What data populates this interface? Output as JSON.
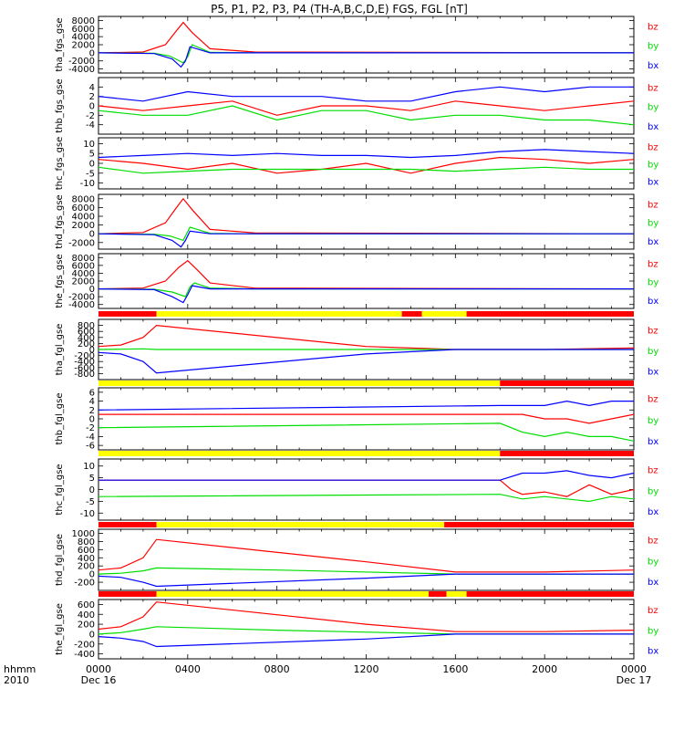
{
  "title": "P5, P1, P2, P3, P4 (TH-A,B,C,D,E) FGS, FGL [nT]",
  "x_axis": {
    "ticks": [
      "0000",
      "0400",
      "0800",
      "1200",
      "1600",
      "2000",
      "0000"
    ],
    "tick_values": [
      0,
      4,
      8,
      12,
      16,
      20,
      24
    ],
    "start_date": "Dec 16",
    "end_date": "Dec 17",
    "row1_label": "hhmm",
    "row2_label": "2010"
  },
  "colors": {
    "bx": "#0000ff",
    "by": "#00dd00",
    "bz": "#ff0000",
    "bar_red": "#ff0000",
    "bar_yellow": "#ffff00"
  },
  "chart_data": [
    {
      "type": "line",
      "ylabel": "tha_fgs_gse",
      "ylim": [
        -5000,
        9000
      ],
      "yticks": [
        8000,
        6000,
        4000,
        2000,
        0,
        -2000,
        -4000
      ],
      "xlim": [
        0,
        24
      ],
      "legend": [
        "bz",
        "by",
        "bx"
      ],
      "legend_placement": "right",
      "series": [
        {
          "name": "bz",
          "color": "#ff0000",
          "x": [
            0,
            2,
            3,
            3.5,
            3.8,
            4.2,
            5,
            7,
            24
          ],
          "y": [
            0,
            200,
            2000,
            5500,
            7500,
            5000,
            1000,
            200,
            0
          ]
        },
        {
          "name": "by",
          "color": "#00dd00",
          "x": [
            0,
            2.5,
            3.2,
            3.8,
            4,
            4.2,
            5,
            7,
            24
          ],
          "y": [
            0,
            -100,
            -800,
            -2500,
            -1000,
            2000,
            100,
            0,
            0
          ]
        },
        {
          "name": "bx",
          "color": "#0000ff",
          "x": [
            0,
            2.5,
            3.3,
            3.7,
            3.9,
            4.1,
            5,
            7,
            24
          ],
          "y": [
            0,
            -200,
            -1500,
            -3500,
            -2000,
            1500,
            0,
            0,
            0
          ]
        }
      ]
    },
    {
      "type": "line",
      "ylabel": "thb_fgs_gse",
      "ylim": [
        -6,
        6
      ],
      "yticks": [
        4,
        2,
        0,
        -2,
        -4
      ],
      "xlim": [
        0,
        24
      ],
      "legend": [
        "bz",
        "by",
        "bx"
      ],
      "legend_placement": "right",
      "series": [
        {
          "name": "bz",
          "color": "#ff0000",
          "x": [
            0,
            2,
            4,
            6,
            8,
            10,
            12,
            14,
            16,
            18,
            20,
            22,
            24
          ],
          "y": [
            0,
            -1,
            0,
            1,
            -2,
            0,
            0,
            -1,
            1,
            0,
            -1,
            0,
            1
          ]
        },
        {
          "name": "by",
          "color": "#00dd00",
          "x": [
            0,
            2,
            4,
            6,
            8,
            10,
            12,
            14,
            16,
            18,
            20,
            22,
            24
          ],
          "y": [
            -1,
            -2,
            -2,
            0,
            -3,
            -1,
            -1,
            -3,
            -2,
            -2,
            -3,
            -3,
            -4
          ]
        },
        {
          "name": "bx",
          "color": "#0000ff",
          "x": [
            0,
            2,
            4,
            6,
            8,
            10,
            12,
            14,
            16,
            18,
            20,
            22,
            24
          ],
          "y": [
            2,
            1,
            3,
            2,
            2,
            2,
            1,
            1,
            3,
            4,
            3,
            4,
            4
          ]
        }
      ]
    },
    {
      "type": "line",
      "ylabel": "thc_fgs_gse",
      "ylim": [
        -13,
        13
      ],
      "yticks": [
        10,
        5,
        0,
        -5,
        -10
      ],
      "xlim": [
        0,
        24
      ],
      "legend": [
        "bz",
        "by",
        "bx"
      ],
      "legend_placement": "right",
      "series": [
        {
          "name": "bz",
          "color": "#ff0000",
          "x": [
            0,
            2,
            4,
            6,
            8,
            10,
            12,
            14,
            16,
            18,
            20,
            22,
            24
          ],
          "y": [
            2,
            0,
            -3,
            0,
            -5,
            -3,
            0,
            -5,
            0,
            3,
            2,
            0,
            2
          ]
        },
        {
          "name": "by",
          "color": "#00dd00",
          "x": [
            0,
            2,
            4,
            6,
            8,
            10,
            12,
            14,
            16,
            18,
            20,
            22,
            24
          ],
          "y": [
            -2,
            -5,
            -4,
            -3,
            -3,
            -3,
            -3,
            -3,
            -4,
            -3,
            -2,
            -3,
            -3
          ]
        },
        {
          "name": "bx",
          "color": "#0000ff",
          "x": [
            0,
            2,
            4,
            6,
            8,
            10,
            12,
            14,
            16,
            18,
            20,
            22,
            24
          ],
          "y": [
            3,
            4,
            5,
            4,
            5,
            4,
            4,
            3,
            4,
            6,
            7,
            6,
            5
          ]
        }
      ]
    },
    {
      "type": "line",
      "ylabel": "thd_fgs_gse",
      "ylim": [
        -3500,
        9000
      ],
      "yticks": [
        8000,
        6000,
        4000,
        2000,
        0,
        -2000
      ],
      "xlim": [
        0,
        24
      ],
      "legend": [
        "bz",
        "by",
        "bx"
      ],
      "legend_placement": "right",
      "series": [
        {
          "name": "bz",
          "color": "#ff0000",
          "x": [
            0,
            2,
            3,
            3.5,
            3.8,
            4.2,
            5,
            7,
            24
          ],
          "y": [
            0,
            300,
            2500,
            6000,
            8000,
            5500,
            1000,
            200,
            0
          ]
        },
        {
          "name": "by",
          "color": "#00dd00",
          "x": [
            0,
            2.5,
            3.2,
            3.8,
            4.1,
            4.3,
            5,
            7,
            24
          ],
          "y": [
            0,
            -100,
            -500,
            -1500,
            1500,
            1200,
            100,
            0,
            0
          ]
        },
        {
          "name": "bx",
          "color": "#0000ff",
          "x": [
            0,
            2.5,
            3.3,
            3.7,
            3.9,
            4.1,
            5,
            7,
            24
          ],
          "y": [
            0,
            -200,
            -1500,
            -3000,
            -1500,
            600,
            0,
            0,
            0
          ]
        }
      ]
    },
    {
      "type": "line",
      "ylabel": "the_fgs_gse",
      "ylim": [
        -5000,
        9000
      ],
      "yticks": [
        8000,
        6000,
        4000,
        2000,
        0,
        -2000,
        -4000
      ],
      "xlim": [
        0,
        24
      ],
      "legend": [
        "bz",
        "by",
        "bx"
      ],
      "legend_placement": "right",
      "series": [
        {
          "name": "bz",
          "color": "#ff0000",
          "x": [
            0,
            2,
            3,
            3.6,
            4,
            4.4,
            5,
            7,
            24
          ],
          "y": [
            0,
            200,
            2000,
            5500,
            7200,
            5000,
            1500,
            200,
            0
          ]
        },
        {
          "name": "by",
          "color": "#00dd00",
          "x": [
            0,
            2.5,
            3.3,
            3.9,
            4.1,
            4.3,
            5,
            7,
            24
          ],
          "y": [
            0,
            -100,
            -800,
            -2000,
            500,
            1500,
            200,
            0,
            0
          ]
        },
        {
          "name": "bx",
          "color": "#0000ff",
          "x": [
            0,
            2.5,
            3.3,
            3.8,
            4,
            4.2,
            5,
            7,
            24
          ],
          "y": [
            0,
            -200,
            -2000,
            -3500,
            -1500,
            800,
            0,
            0,
            0
          ]
        }
      ]
    },
    {
      "type": "line",
      "ylabel": "tha_fgl_gse",
      "ylim": [
        -1000,
        1000
      ],
      "yticks": [
        800,
        600,
        400,
        200,
        0,
        -200,
        -400,
        -600,
        -800
      ],
      "xlim": [
        0,
        24
      ],
      "legend": [
        "bz",
        "by",
        "bx"
      ],
      "legend_placement": "right",
      "series": [
        {
          "name": "bz",
          "color": "#ff0000",
          "x": [
            0,
            1,
            2,
            2.6,
            12,
            16,
            20,
            24
          ],
          "y": [
            100,
            150,
            400,
            800,
            100,
            0,
            0,
            50
          ]
        },
        {
          "name": "by",
          "color": "#00dd00",
          "x": [
            0,
            1,
            2,
            2.6,
            8,
            16,
            24
          ],
          "y": [
            0,
            10,
            20,
            0,
            0,
            0,
            0
          ]
        },
        {
          "name": "bx",
          "color": "#0000ff",
          "x": [
            0,
            1,
            2,
            2.6,
            12,
            16,
            24
          ],
          "y": [
            -100,
            -150,
            -400,
            -780,
            -150,
            0,
            0
          ]
        }
      ]
    },
    {
      "type": "line",
      "ylabel": "thb_fgl_gse",
      "ylim": [
        -7,
        7
      ],
      "yticks": [
        6,
        4,
        2,
        0,
        -2,
        -4,
        -6
      ],
      "xlim": [
        0,
        24
      ],
      "legend": [
        "bz",
        "by",
        "bx"
      ],
      "legend_placement": "right",
      "series": [
        {
          "name": "bz",
          "color": "#ff0000",
          "x": [
            0,
            18,
            19,
            20,
            21,
            22,
            23,
            24
          ],
          "y": [
            1,
            1,
            1,
            0,
            0,
            -1,
            0,
            1
          ]
        },
        {
          "name": "by",
          "color": "#00dd00",
          "x": [
            0,
            18,
            19,
            20,
            21,
            22,
            23,
            24
          ],
          "y": [
            -2,
            -1,
            -3,
            -4,
            -3,
            -4,
            -4,
            -5
          ]
        },
        {
          "name": "bx",
          "color": "#0000ff",
          "x": [
            0,
            18,
            19,
            20,
            21,
            22,
            23,
            24
          ],
          "y": [
            2,
            3,
            3,
            3,
            4,
            3,
            4,
            4
          ]
        }
      ]
    },
    {
      "type": "line",
      "ylabel": "thc_fgl_gse",
      "ylim": [
        -13,
        13
      ],
      "yticks": [
        10,
        5,
        0,
        -5,
        -10
      ],
      "xlim": [
        0,
        24
      ],
      "legend": [
        "bz",
        "by",
        "bx"
      ],
      "legend_placement": "right",
      "series": [
        {
          "name": "bz",
          "color": "#ff0000",
          "x": [
            0,
            18,
            18.5,
            19,
            20,
            21,
            22,
            23,
            24
          ],
          "y": [
            4,
            4,
            0,
            -2,
            -1,
            -3,
            2,
            -2,
            0
          ]
        },
        {
          "name": "by",
          "color": "#00dd00",
          "x": [
            0,
            18,
            19,
            20,
            21,
            22,
            23,
            24
          ],
          "y": [
            -3,
            -2,
            -4,
            -3,
            -4,
            -5,
            -3,
            -4
          ]
        },
        {
          "name": "bx",
          "color": "#0000ff",
          "x": [
            0,
            18,
            19,
            20,
            21,
            22,
            23,
            24
          ],
          "y": [
            4,
            4,
            7,
            7,
            8,
            6,
            5,
            7
          ]
        }
      ]
    },
    {
      "type": "line",
      "ylabel": "thd_fgl_gse",
      "ylim": [
        -400,
        1100
      ],
      "yticks": [
        1000,
        800,
        600,
        400,
        200,
        0,
        -200
      ],
      "xlim": [
        0,
        24
      ],
      "legend": [
        "bz",
        "by",
        "bx"
      ],
      "legend_placement": "right",
      "series": [
        {
          "name": "bz",
          "color": "#ff0000",
          "x": [
            0,
            1,
            2,
            2.6,
            12,
            16,
            20,
            24
          ],
          "y": [
            100,
            150,
            400,
            850,
            300,
            50,
            50,
            100
          ]
        },
        {
          "name": "by",
          "color": "#00dd00",
          "x": [
            0,
            1,
            2,
            2.6,
            8,
            16,
            24
          ],
          "y": [
            0,
            20,
            80,
            150,
            100,
            0,
            0
          ]
        },
        {
          "name": "bx",
          "color": "#0000ff",
          "x": [
            0,
            1,
            2,
            2.6,
            12,
            16,
            24
          ],
          "y": [
            -50,
            -80,
            -200,
            -300,
            -100,
            0,
            0
          ]
        }
      ]
    },
    {
      "type": "line",
      "ylabel": "the_fgl_gse",
      "ylim": [
        -500,
        700
      ],
      "yticks": [
        600,
        400,
        200,
        0,
        -200,
        -400
      ],
      "xlim": [
        0,
        24
      ],
      "legend": [
        "bz",
        "by",
        "bx"
      ],
      "legend_placement": "right",
      "series": [
        {
          "name": "bz",
          "color": "#ff0000",
          "x": [
            0,
            1,
            2,
            2.6,
            12,
            16,
            20,
            24
          ],
          "y": [
            100,
            150,
            350,
            650,
            200,
            50,
            50,
            80
          ]
        },
        {
          "name": "by",
          "color": "#00dd00",
          "x": [
            0,
            1,
            2,
            2.6,
            8,
            16,
            24
          ],
          "y": [
            0,
            30,
            100,
            150,
            80,
            0,
            0
          ]
        },
        {
          "name": "bx",
          "color": "#0000ff",
          "x": [
            0,
            1,
            2,
            2.6,
            12,
            16,
            24
          ],
          "y": [
            -50,
            -80,
            -150,
            -250,
            -100,
            0,
            0
          ]
        }
      ]
    }
  ],
  "mode_bars": [
    {
      "segments": [
        {
          "color": "red",
          "from": 0,
          "to": 2.6
        },
        {
          "color": "yellow",
          "from": 2.6,
          "to": 13.6
        },
        {
          "color": "red",
          "from": 13.6,
          "to": 14.5
        },
        {
          "color": "yellow",
          "from": 14.5,
          "to": 16.5
        },
        {
          "color": "red",
          "from": 16.5,
          "to": 24
        }
      ]
    },
    {
      "segments": [
        {
          "color": "yellow",
          "from": 0,
          "to": 18
        },
        {
          "color": "red",
          "from": 18,
          "to": 24
        }
      ]
    },
    {
      "segments": [
        {
          "color": "yellow",
          "from": 0,
          "to": 18
        },
        {
          "color": "red",
          "from": 18,
          "to": 24
        }
      ]
    },
    {
      "segments": [
        {
          "color": "red",
          "from": 0,
          "to": 2.6
        },
        {
          "color": "yellow",
          "from": 2.6,
          "to": 15.5
        },
        {
          "color": "red",
          "from": 15.5,
          "to": 24
        }
      ]
    },
    {
      "segments": [
        {
          "color": "red",
          "from": 0,
          "to": 2.6
        },
        {
          "color": "yellow",
          "from": 2.6,
          "to": 14.8
        },
        {
          "color": "red",
          "from": 14.8,
          "to": 15.6
        },
        {
          "color": "yellow",
          "from": 15.6,
          "to": 16.5
        },
        {
          "color": "red",
          "from": 16.5,
          "to": 24
        }
      ]
    }
  ]
}
